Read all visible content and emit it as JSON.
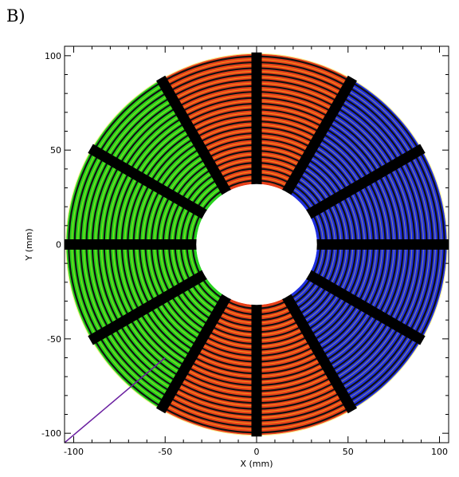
{
  "panel_label": "B)",
  "chart_data": {
    "type": "scatter",
    "xlabel": "X (mm)",
    "ylabel": "Y (mm)",
    "xlim": [
      -105,
      105
    ],
    "ylim": [
      -105,
      105
    ],
    "x_ticks": [
      -100,
      -50,
      0,
      50,
      100
    ],
    "y_ticks": [
      -100,
      -50,
      0,
      50,
      100
    ],
    "x_tick_labels": [
      "-100",
      "-50",
      "0",
      "50",
      "100"
    ],
    "y_tick_labels": [
      "-100",
      "-50",
      "0",
      "50",
      "100"
    ],
    "grid": false,
    "disk": {
      "inner_radius": 33,
      "outer_radius": 104
    },
    "ring_count": 22,
    "spoke_angles_deg": [
      0,
      30,
      60,
      90,
      120,
      150,
      180,
      210,
      240,
      270,
      300,
      330
    ],
    "sectors": [
      {
        "color_region": "blue",
        "start_deg": -60,
        "end_deg": 60,
        "color": "#1f2fe0"
      },
      {
        "color_region": "red",
        "start_deg": 60,
        "end_deg": 120,
        "color": "#e8401a"
      },
      {
        "color_region": "green",
        "start_deg": 120,
        "end_deg": 240,
        "color": "#28d21e"
      },
      {
        "color_region": "red",
        "start_deg": 240,
        "end_deg": 300,
        "color": "#e8401a"
      }
    ],
    "stripe_color": "#f0e020",
    "track_line": {
      "x": [
        -105,
        -50
      ],
      "y": [
        -105,
        -60
      ],
      "color": "#6a1fa0"
    }
  }
}
